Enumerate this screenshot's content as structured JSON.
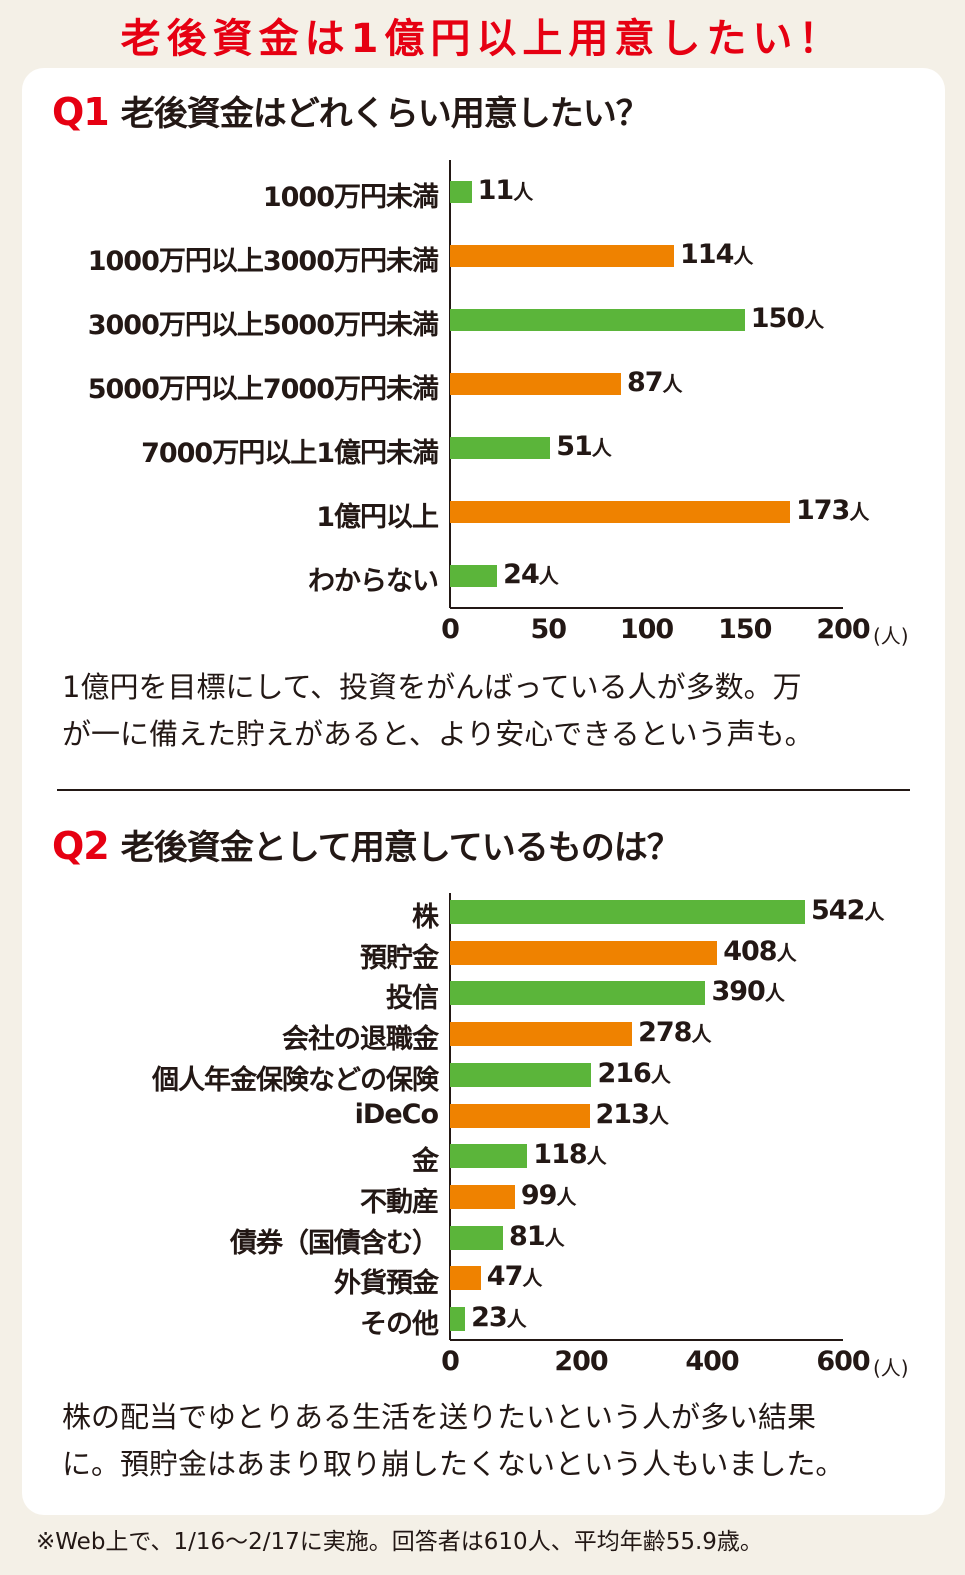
{
  "title": "老後資金は1億円以上用意したい！",
  "colors": {
    "title": "#e60012",
    "green": "#5bb53a",
    "orange": "#ef8200"
  },
  "chart_data": [
    {
      "type": "bar",
      "orientation": "horizontal",
      "question_number": "Q1",
      "title": "老後資金はどれくらい用意したい？",
      "categories": [
        "1000万円未満",
        "1000万円以上3000万円未満",
        "3000万円以上5000万円未満",
        "5000万円以上7000万円未満",
        "7000万円以上1億円未満",
        "1億円以上",
        "わからない"
      ],
      "values": [
        11,
        114,
        150,
        87,
        51,
        173,
        24
      ],
      "value_suffix": "人",
      "bar_colors": [
        "green",
        "orange",
        "green",
        "orange",
        "green",
        "orange",
        "green"
      ],
      "xlim": [
        0,
        200
      ],
      "xticks": [
        "0",
        "50",
        "100",
        "150",
        "200"
      ],
      "xunit": "(人)",
      "grid": false,
      "comment": [
        "1億円を目標にして、投資をがんばっている人が多数。万",
        "が一に備えた貯えがあると、より安心できるという声も。"
      ]
    },
    {
      "type": "bar",
      "orientation": "horizontal",
      "question_number": "Q2",
      "title": "老後資金として用意しているものは？",
      "categories": [
        "株",
        "預貯金",
        "投信",
        "会社の退職金",
        "個人年金保険などの保険",
        "iDeCo",
        "金",
        "不動産",
        "債券（国債含む）",
        "外貨預金",
        "その他"
      ],
      "values": [
        542,
        408,
        390,
        278,
        216,
        213,
        118,
        99,
        81,
        47,
        23
      ],
      "value_suffix": "人",
      "bar_colors": [
        "green",
        "orange",
        "green",
        "orange",
        "green",
        "orange",
        "green",
        "orange",
        "green",
        "orange",
        "green"
      ],
      "xlim": [
        0,
        600
      ],
      "xticks": [
        "0",
        "200",
        "400",
        "600"
      ],
      "xunit": "(人)",
      "grid": false,
      "comment": [
        "株の配当でゆとりある生活を送りたいという人が多い結果",
        "に。預貯金はあまり取り崩したくないという人もいました。"
      ]
    }
  ],
  "footnote": "※Web上で、1/16〜2/17に実施。回答者は610人、平均年齢55.9歳。"
}
